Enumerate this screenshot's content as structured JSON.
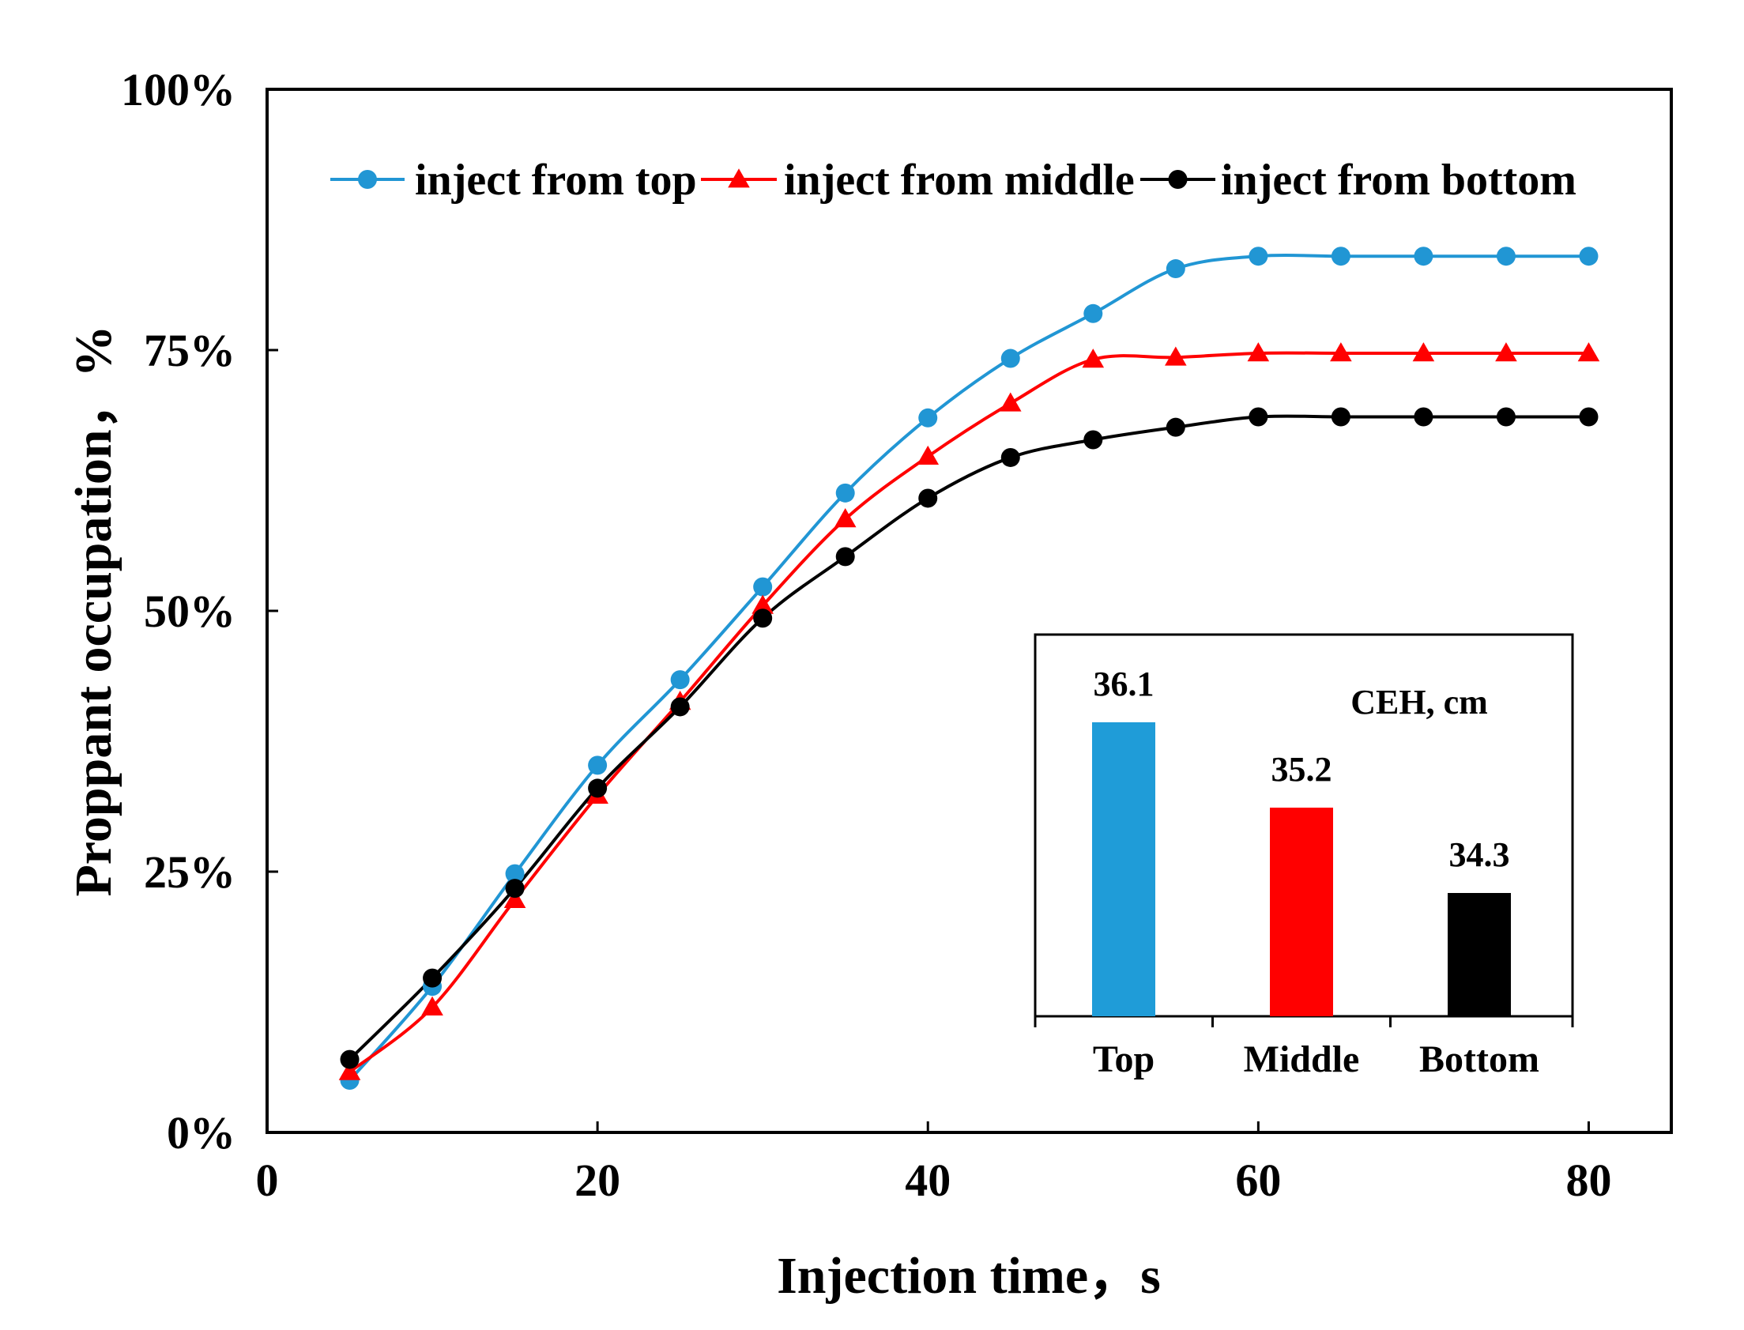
{
  "chart_data": [
    {
      "type": "line",
      "title": "",
      "xlabel": "Injection time，s",
      "ylabel": "Proppant occupation，%",
      "xlim": [
        0,
        85
      ],
      "ylim": [
        0,
        100
      ],
      "x_ticks": [
        "0",
        "20",
        "40",
        "60",
        "80"
      ],
      "x_tick_values": [
        0,
        20,
        40,
        60,
        80
      ],
      "y_ticks": [
        "0%",
        "25%",
        "50%",
        "75%",
        "100%"
      ],
      "y_tick_values": [
        0,
        25,
        50,
        75,
        100
      ],
      "grid": false,
      "legend_position": "top",
      "x": [
        5,
        10,
        15,
        20,
        25,
        30,
        35,
        40,
        45,
        50,
        55,
        60,
        65,
        70,
        75,
        80
      ],
      "series": [
        {
          "name": "inject from top",
          "color": "#2196d4",
          "marker": "circle",
          "values": [
            5.0,
            14.0,
            24.8,
            35.2,
            43.4,
            52.3,
            61.3,
            68.5,
            74.2,
            78.5,
            82.8,
            84.0,
            84.0,
            84.0,
            84.0,
            84.0
          ]
        },
        {
          "name": "inject from middle",
          "color": "#ff0000",
          "marker": "triangle",
          "values": [
            5.8,
            12.0,
            22.3,
            32.3,
            41.3,
            50.5,
            58.8,
            64.8,
            69.9,
            74.1,
            74.3,
            74.7,
            74.7,
            74.7,
            74.7,
            74.7
          ]
        },
        {
          "name": "inject from bottom",
          "color": "#000000",
          "marker": "circle",
          "values": [
            7.0,
            14.8,
            23.4,
            33.0,
            40.8,
            49.3,
            55.2,
            60.8,
            64.7,
            66.4,
            67.6,
            68.6,
            68.6,
            68.6,
            68.6,
            68.6
          ]
        }
      ]
    },
    {
      "type": "bar",
      "title": "CEH, cm",
      "categories": [
        "Top",
        "Middle",
        "Bottom"
      ],
      "values": [
        36.1,
        35.2,
        34.3
      ],
      "data_labels": [
        "36.1",
        "35.2",
        "34.3"
      ],
      "colors": [
        "#1f9cd8",
        "#ff0000",
        "#000000"
      ],
      "ylim": [
        33.0,
        37.0
      ]
    }
  ]
}
